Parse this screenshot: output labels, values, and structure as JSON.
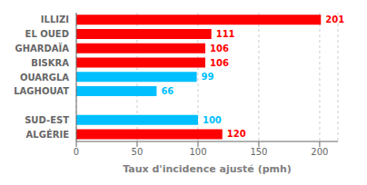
{
  "chart_data": {
    "type": "bar",
    "orientation": "horizontal",
    "xlabel": "Taux d'incidence ajusté (pmh)",
    "categories": [
      "ALGÉRIE",
      "SUD-EST",
      null,
      "LAGHOUAT",
      "OUARGLA",
      "BISKRA",
      "GHARDAÏA",
      "EL OUED",
      "ILLIZI"
    ],
    "values": [
      120,
      100,
      null,
      66,
      99,
      106,
      106,
      111,
      201
    ],
    "colors": [
      "#ff0000",
      "#00bfff",
      "#ffffff",
      "#00bfff",
      "#00bfff",
      "#ff0000",
      "#ff0000",
      "#ff0000",
      "#ff0000"
    ],
    "xlim": [
      0,
      215
    ],
    "xticks": [
      0,
      50,
      100,
      150,
      200
    ],
    "grid": true,
    "data_labels": true
  }
}
